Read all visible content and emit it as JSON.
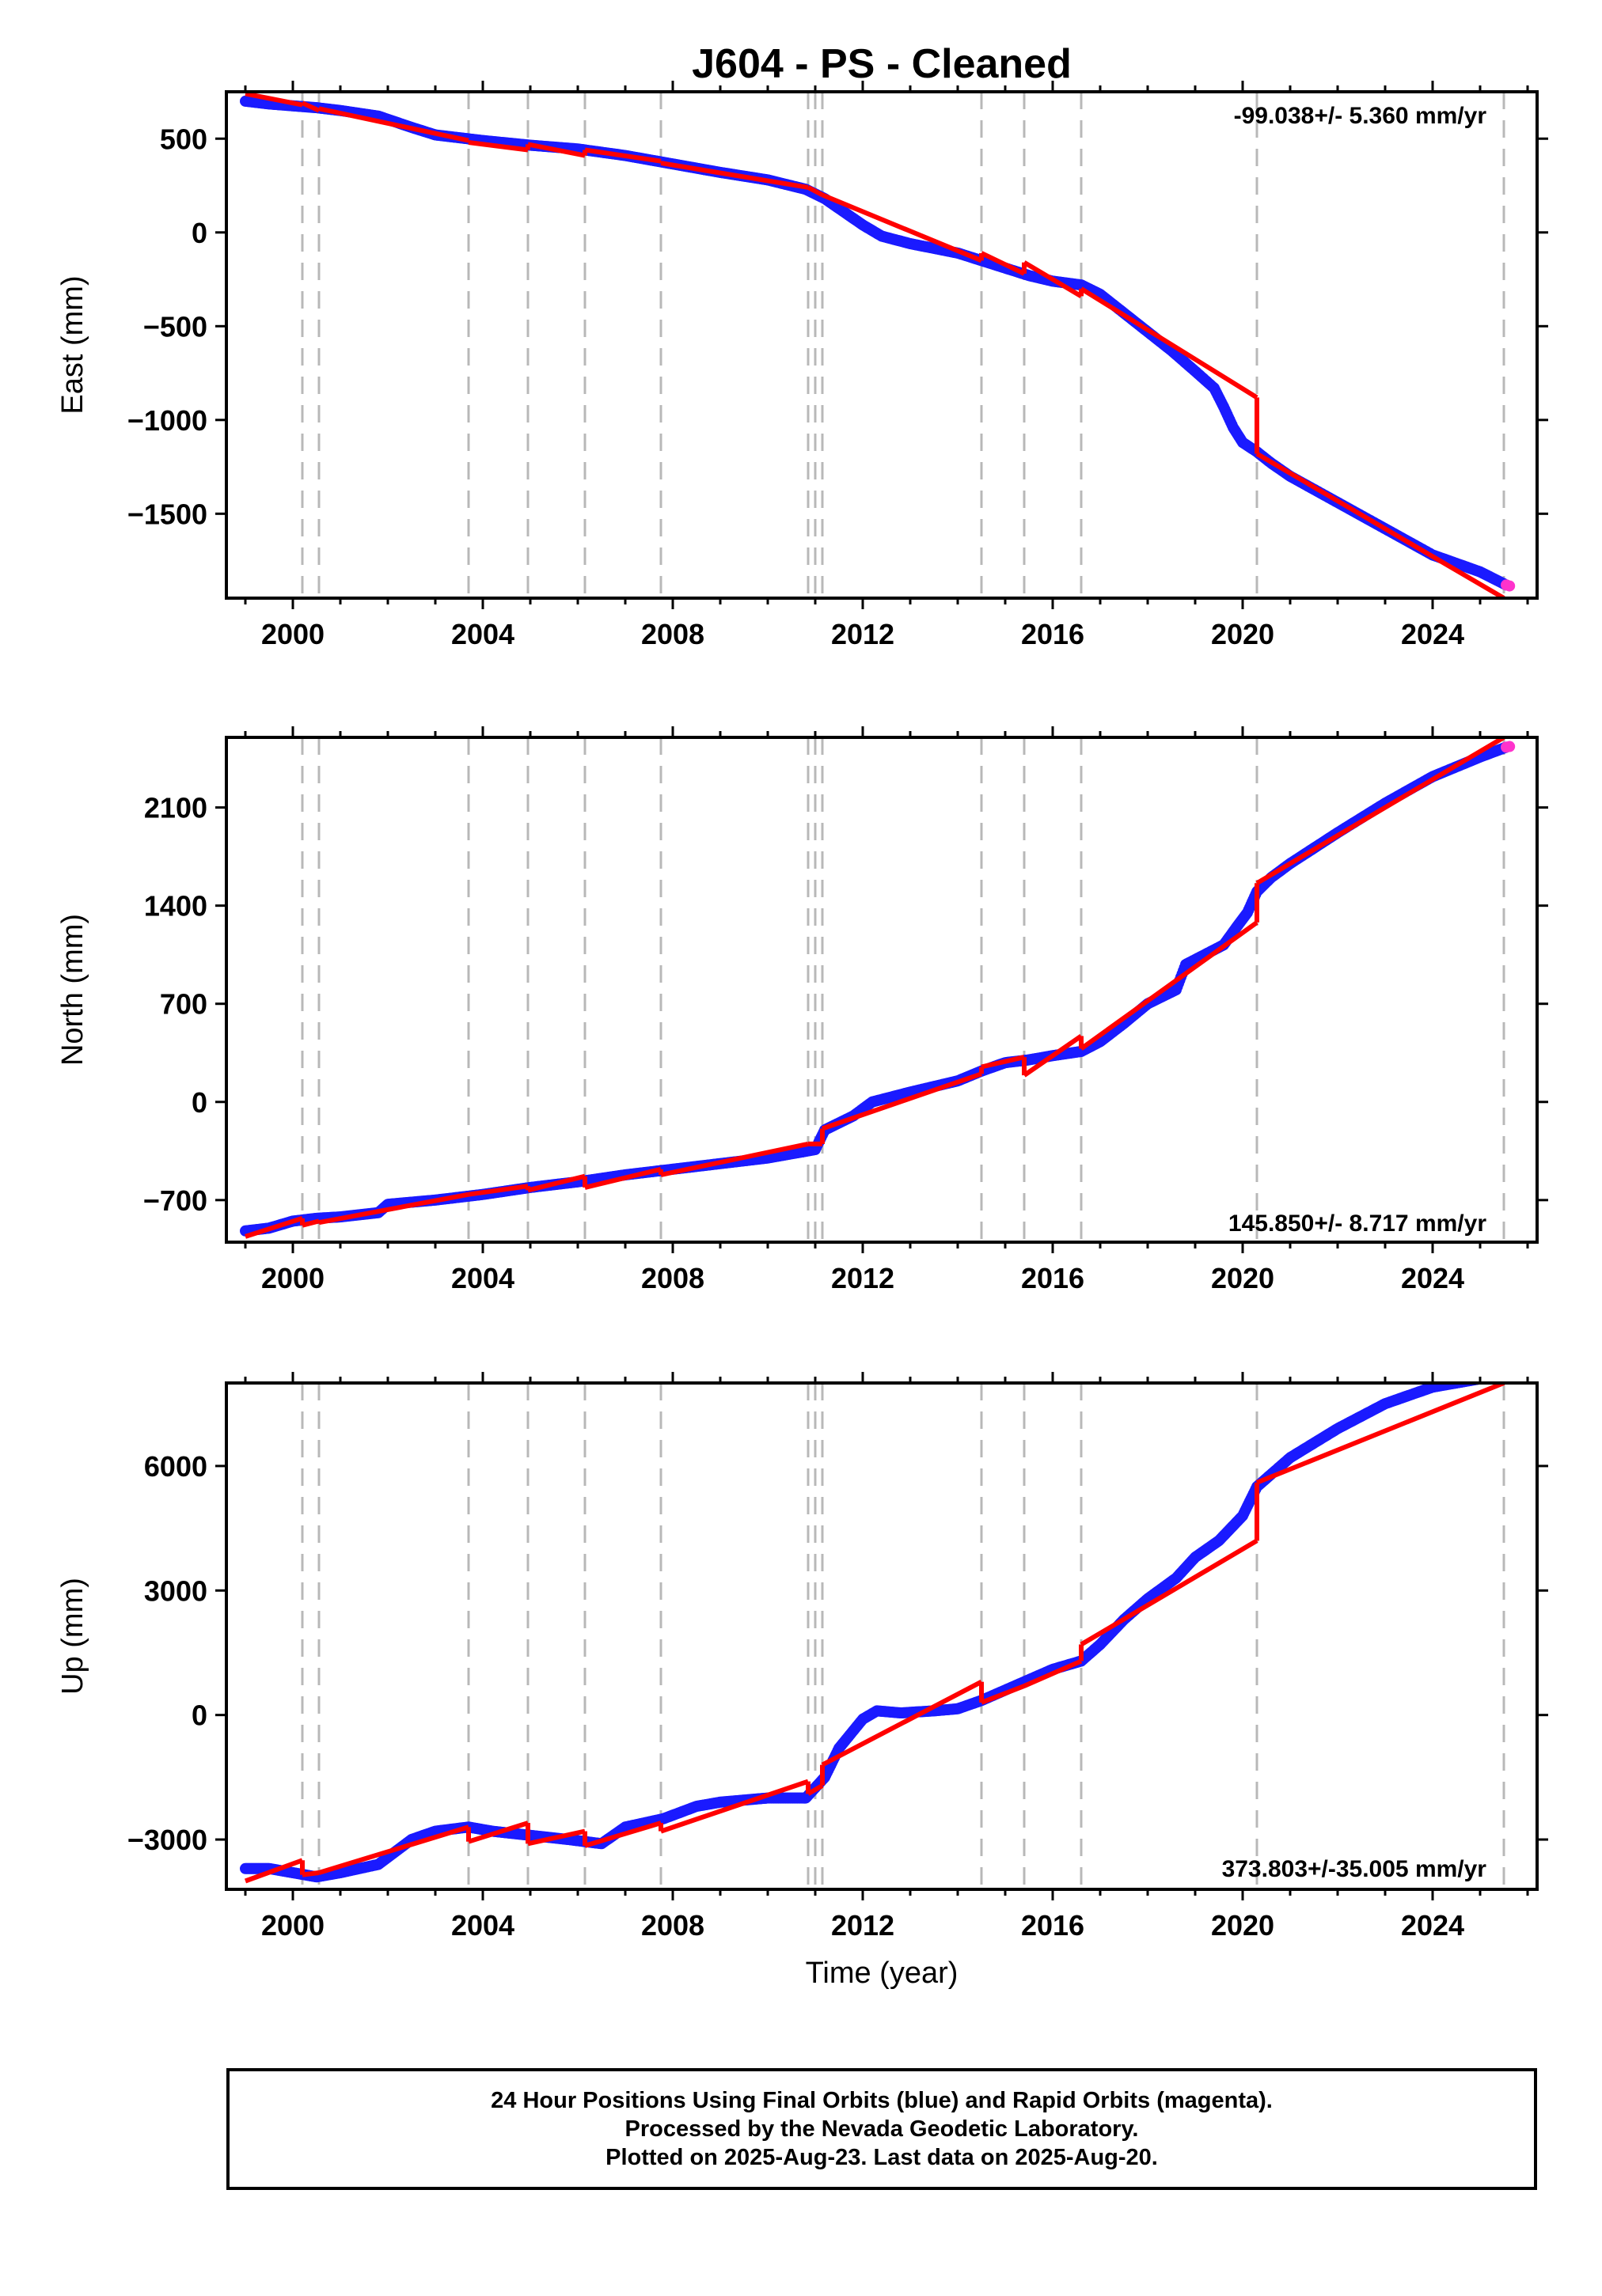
{
  "title": "J604  - PS - Cleaned",
  "colors": {
    "final_orbits": "#1a1aff",
    "rapid_orbits": "#ff33cc",
    "model": "#ff0000",
    "offset_lines": "#b8b8b8"
  },
  "x_ticks": [
    "2000",
    "2004",
    "2008",
    "2012",
    "2016",
    "2020",
    "2024"
  ],
  "footer": {
    "line1": "24 Hour Positions Using Final Orbits (blue) and Rapid Orbits (magenta).",
    "line2": "Processed by the Nevada Geodetic Laboratory.",
    "line3": "Plotted on 2025-Aug-23. Last data on 2025-Aug-20."
  },
  "chart_data": [
    {
      "type": "scatter",
      "component": "East",
      "ylabel": "East (mm)",
      "xlabel": "",
      "rate_label": "-99.038+/- 5.360 mm/yr",
      "xlim": [
        1998.6,
        2026.2
      ],
      "ylim": [
        -1950,
        750
      ],
      "yticks": [
        500,
        0,
        -500,
        -1000,
        -1500
      ],
      "ytick_labels": [
        "500",
        "0",
        "−500",
        "−1000",
        "−1500"
      ],
      "offset_epochs": [
        2000.2,
        2000.55,
        2003.7,
        2004.95,
        2006.15,
        2007.75,
        2010.85,
        2011.0,
        2011.15,
        2014.5,
        2015.4,
        2016.6,
        2020.3,
        2025.5
      ],
      "series": [
        {
          "name": "Final Orbits (blue)",
          "x": [
            1999.0,
            1999.5,
            2000.0,
            2000.5,
            2001.0,
            2001.8,
            2002.5,
            2003.0,
            2004.0,
            2005.0,
            2006.0,
            2007.0,
            2008.0,
            2009.0,
            2010.0,
            2010.8,
            2011.2,
            2011.6,
            2012.0,
            2012.4,
            2013.0,
            2014.0,
            2014.5,
            2015.0,
            2015.5,
            2016.0,
            2016.6,
            2017.0,
            2017.5,
            2018.0,
            2018.5,
            2019.0,
            2019.4,
            2019.6,
            2019.8,
            2020.0,
            2020.3,
            2020.6,
            2021.0,
            2022.0,
            2023.0,
            2024.0,
            2025.0,
            2025.55
          ],
          "y": [
            700,
            685,
            675,
            665,
            650,
            620,
            560,
            520,
            490,
            465,
            445,
            410,
            365,
            320,
            280,
            230,
            180,
            110,
            40,
            -20,
            -60,
            -110,
            -150,
            -190,
            -230,
            -260,
            -280,
            -330,
            -430,
            -530,
            -630,
            -740,
            -830,
            -930,
            -1040,
            -1120,
            -1170,
            -1230,
            -1300,
            -1440,
            -1580,
            -1720,
            -1810,
            -1880
          ]
        },
        {
          "name": "Rapid Orbits (magenta)",
          "x": [
            2025.55,
            2025.62
          ],
          "y": [
            -1880,
            -1885
          ]
        },
        {
          "name": "Model (red)",
          "segments": [
            {
              "x": [
                1999.0,
                2000.2
              ],
              "y": [
                740,
                680
              ]
            },
            {
              "x": [
                2000.2,
                2000.55
              ],
              "y": [
                690,
                650
              ]
            },
            {
              "x": [
                2000.55,
                2003.7
              ],
              "y": [
                660,
                490
              ]
            },
            {
              "x": [
                2003.7,
                2004.95
              ],
              "y": [
                480,
                440
              ]
            },
            {
              "x": [
                2004.95,
                2006.15
              ],
              "y": [
                470,
                410
              ]
            },
            {
              "x": [
                2006.15,
                2007.75
              ],
              "y": [
                440,
                380
              ]
            },
            {
              "x": [
                2007.75,
                2010.85
              ],
              "y": [
                370,
                240
              ]
            },
            {
              "x": [
                2010.85,
                2011.15
              ],
              "y": [
                240,
                200
              ]
            },
            {
              "x": [
                2011.15,
                2014.5
              ],
              "y": [
                200,
                -150
              ]
            },
            {
              "x": [
                2014.5,
                2015.4
              ],
              "y": [
                -110,
                -220
              ]
            },
            {
              "x": [
                2015.4,
                2016.6
              ],
              "y": [
                -160,
                -340
              ]
            },
            {
              "x": [
                2016.6,
                2020.3
              ],
              "y": [
                -300,
                -880
              ]
            },
            {
              "x": [
                2020.3,
                2025.5
              ],
              "y": [
                -1180,
                -1950
              ]
            }
          ],
          "jumps": [
            {
              "x": 2020.3,
              "y": [
                -880,
                -1180
              ]
            }
          ]
        }
      ]
    },
    {
      "type": "scatter",
      "component": "North",
      "ylabel": "North (mm)",
      "xlabel": "",
      "rate_label": "145.850+/- 8.717 mm/yr",
      "xlim": [
        1998.6,
        2026.2
      ],
      "ylim": [
        -1000,
        2600
      ],
      "yticks": [
        2100,
        1400,
        700,
        0,
        -700
      ],
      "ytick_labels": [
        "2100",
        "1400",
        "700",
        "0",
        "−700"
      ],
      "offset_epochs": [
        2000.2,
        2000.55,
        2003.7,
        2004.95,
        2006.15,
        2007.75,
        2010.85,
        2011.0,
        2011.15,
        2014.5,
        2015.4,
        2016.6,
        2020.3,
        2025.5
      ],
      "series": [
        {
          "name": "Final Orbits (blue)",
          "x": [
            1999.0,
            1999.5,
            2000.0,
            2000.5,
            2001.0,
            2001.8,
            2002.0,
            2003.0,
            2004.0,
            2005.0,
            2006.0,
            2007.0,
            2008.0,
            2009.0,
            2010.0,
            2011.0,
            2011.2,
            2011.8,
            2012.2,
            2013.0,
            2014.0,
            2014.5,
            2015.0,
            2015.5,
            2016.0,
            2016.6,
            2017.0,
            2017.5,
            2018.0,
            2018.6,
            2018.8,
            2019.2,
            2019.6,
            2019.9,
            2020.1,
            2020.3,
            2020.6,
            2021.0,
            2022.0,
            2023.0,
            2024.0,
            2025.0,
            2025.55
          ],
          "y": [
            -920,
            -900,
            -850,
            -830,
            -820,
            -790,
            -730,
            -700,
            -660,
            -610,
            -570,
            -520,
            -480,
            -440,
            -400,
            -340,
            -200,
            -100,
            0,
            70,
            150,
            220,
            280,
            300,
            330,
            360,
            430,
            560,
            700,
            800,
            980,
            1050,
            1120,
            1260,
            1350,
            1500,
            1600,
            1700,
            1920,
            2130,
            2320,
            2460,
            2530
          ]
        },
        {
          "name": "Rapid Orbits (magenta)",
          "x": [
            2025.55,
            2025.62
          ],
          "y": [
            2530,
            2535
          ]
        },
        {
          "name": "Model (red)",
          "segments": [
            {
              "x": [
                1999.0,
                2000.2
              ],
              "y": [
                -960,
                -830
              ]
            },
            {
              "x": [
                2000.2,
                2000.55
              ],
              "y": [
                -880,
                -850
              ]
            },
            {
              "x": [
                2000.55,
                2003.7
              ],
              "y": [
                -860,
                -660
              ]
            },
            {
              "x": [
                2003.7,
                2004.95
              ],
              "y": [
                -660,
                -600
              ]
            },
            {
              "x": [
                2004.95,
                2006.15
              ],
              "y": [
                -630,
                -530
              ]
            },
            {
              "x": [
                2006.15,
                2007.75
              ],
              "y": [
                -610,
                -480
              ]
            },
            {
              "x": [
                2007.75,
                2010.85
              ],
              "y": [
                -520,
                -300
              ]
            },
            {
              "x": [
                2010.85,
                2011.15
              ],
              "y": [
                -300,
                -300
              ]
            },
            {
              "x": [
                2011.15,
                2014.5
              ],
              "y": [
                -190,
                200
              ]
            },
            {
              "x": [
                2014.5,
                2015.4
              ],
              "y": [
                250,
                320
              ]
            },
            {
              "x": [
                2015.4,
                2016.6
              ],
              "y": [
                190,
                470
              ]
            },
            {
              "x": [
                2016.6,
                2020.3
              ],
              "y": [
                380,
                1280
              ]
            },
            {
              "x": [
                2020.3,
                2025.5
              ],
              "y": [
                1560,
                2600
              ]
            }
          ],
          "jumps": [
            {
              "x": 2020.3,
              "y": [
                1280,
                1560
              ]
            }
          ]
        }
      ]
    },
    {
      "type": "scatter",
      "component": "Up",
      "ylabel": "Up (mm)",
      "xlabel": "Time (year)",
      "rate_label": "373.803+/-35.005 mm/yr",
      "xlim": [
        1998.6,
        2026.2
      ],
      "ylim": [
        -4200,
        8000
      ],
      "yticks": [
        6000,
        3000,
        0,
        -3000
      ],
      "ytick_labels": [
        "6000",
        "3000",
        "0",
        "−3000"
      ],
      "offset_epochs": [
        2000.2,
        2000.55,
        2003.7,
        2004.95,
        2006.15,
        2007.75,
        2010.85,
        2011.0,
        2011.15,
        2014.5,
        2015.4,
        2016.6,
        2020.3,
        2025.5
      ],
      "series": [
        {
          "name": "Final Orbits (blue)",
          "x": [
            1999.0,
            1999.5,
            2000.0,
            2000.5,
            2001.0,
            2001.8,
            2002.5,
            2003.0,
            2003.7,
            2004.2,
            2005.0,
            2005.8,
            2006.5,
            2007.0,
            2007.8,
            2008.5,
            2009.0,
            2010.0,
            2010.8,
            2011.2,
            2011.5,
            2012.0,
            2012.3,
            2012.8,
            2013.5,
            2014.0,
            2014.5,
            2015.0,
            2015.5,
            2016.0,
            2016.6,
            2017.0,
            2017.5,
            2018.0,
            2018.6,
            2019.0,
            2019.5,
            2020.0,
            2020.3,
            2020.6,
            2021.0,
            2022.0,
            2023.0,
            2024.0,
            2025.0,
            2025.55
          ],
          "y": [
            -3700,
            -3700,
            -3800,
            -3900,
            -3800,
            -3600,
            -3000,
            -2800,
            -2700,
            -2800,
            -2900,
            -3000,
            -3100,
            -2700,
            -2500,
            -2200,
            -2100,
            -2000,
            -2000,
            -1500,
            -800,
            -100,
            100,
            50,
            100,
            150,
            350,
            600,
            850,
            1100,
            1300,
            1700,
            2300,
            2800,
            3300,
            3800,
            4200,
            4800,
            5500,
            5800,
            6200,
            6900,
            7500,
            7900,
            8100,
            8200
          ]
        },
        {
          "name": "Rapid Orbits (magenta)",
          "x": [
            2025.55,
            2025.62
          ],
          "y": [
            8200,
            8210
          ]
        },
        {
          "name": "Model (red)",
          "segments": [
            {
              "x": [
                1999.0,
                2000.2
              ],
              "y": [
                -4000,
                -3500
              ]
            },
            {
              "x": [
                2000.2,
                2000.55
              ],
              "y": [
                -3850,
                -3800
              ]
            },
            {
              "x": [
                2000.55,
                2003.7
              ],
              "y": [
                -3800,
                -2700
              ]
            },
            {
              "x": [
                2003.7,
                2004.95
              ],
              "y": [
                -3050,
                -2600
              ]
            },
            {
              "x": [
                2004.95,
                2006.15
              ],
              "y": [
                -3100,
                -2800
              ]
            },
            {
              "x": [
                2006.15,
                2007.75
              ],
              "y": [
                -3150,
                -2600
              ]
            },
            {
              "x": [
                2007.75,
                2010.85
              ],
              "y": [
                -2800,
                -1600
              ]
            },
            {
              "x": [
                2010.85,
                2011.15
              ],
              "y": [
                -1900,
                -1700
              ]
            },
            {
              "x": [
                2011.15,
                2014.5
              ],
              "y": [
                -1200,
                800
              ]
            },
            {
              "x": [
                2014.5,
                2015.4
              ],
              "y": [
                300,
                700
              ]
            },
            {
              "x": [
                2015.4,
                2016.6
              ],
              "y": [
                700,
                1300
              ]
            },
            {
              "x": [
                2016.6,
                2020.3
              ],
              "y": [
                1700,
                4200
              ]
            },
            {
              "x": [
                2020.3,
                2025.5
              ],
              "y": [
                5600,
                8000
              ]
            }
          ],
          "jumps": [
            {
              "x": 2020.3,
              "y": [
                4200,
                5600
              ]
            }
          ]
        }
      ]
    }
  ]
}
